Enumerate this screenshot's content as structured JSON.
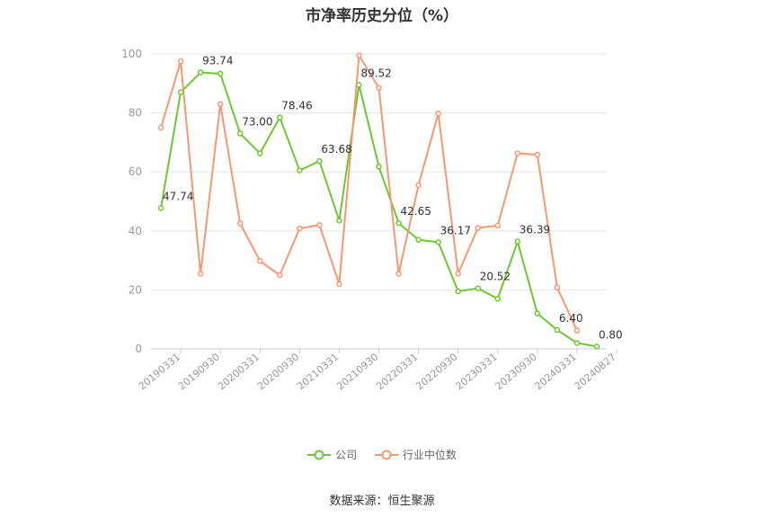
{
  "title": "市净率历史分位（%）",
  "source": "数据来源：恒生聚源",
  "legend": {
    "company": "公司",
    "industry": "行业中位数"
  },
  "colors": {
    "company": "#6cc832",
    "industry": "#f59872",
    "grid": "#e5e5ee",
    "axis_text": "#999999"
  },
  "chart_data": {
    "type": "line",
    "ylim": [
      0,
      100
    ],
    "yticks": [
      0,
      20,
      40,
      60,
      80,
      100
    ],
    "grid": true,
    "legend_position": "bottom",
    "xticks": [
      "20190331",
      "20190930",
      "20200331",
      "20200930",
      "20210331",
      "20210930",
      "20220331",
      "20220930",
      "20230331",
      "20230930",
      "20240331",
      "20240827"
    ],
    "series": [
      {
        "name": "公司",
        "values": [
          47.74,
          87,
          93.74,
          93.3,
          73.0,
          66.3,
          78.46,
          60.5,
          63.68,
          43.5,
          89.52,
          61.8,
          42.65,
          37.0,
          36.17,
          19.5,
          20.52,
          17.0,
          36.39,
          12.0,
          6.4,
          2.0,
          0.8
        ],
        "labels": [
          "47.74",
          "",
          "93.74",
          "",
          "73.00",
          "",
          "78.46",
          "",
          "63.68",
          "",
          "89.52",
          "",
          "42.65",
          "",
          "36.17",
          "",
          "20.52",
          "",
          "36.39",
          "",
          "6.40",
          "",
          "0.80"
        ]
      },
      {
        "name": "行业中位数",
        "values": [
          75.0,
          97.5,
          25.5,
          83.0,
          42.5,
          29.8,
          25.0,
          40.8,
          42.0,
          22.0,
          99.5,
          88.5,
          25.5,
          55.5,
          79.8,
          25.5,
          41.0,
          41.8,
          66.3,
          65.8,
          20.8,
          6.2,
          null
        ]
      }
    ]
  }
}
